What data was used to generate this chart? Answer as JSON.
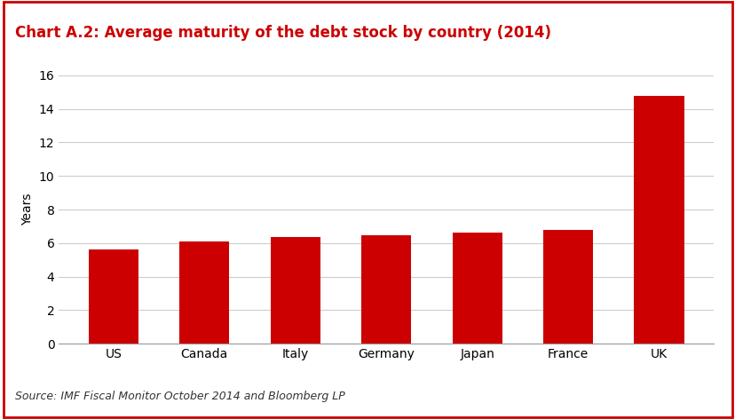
{
  "title": "Chart A.2: Average maturity of the debt stock by country (2014)",
  "title_color": "#cc0000",
  "title_fontsize": 12,
  "categories": [
    "US",
    "Canada",
    "Italy",
    "Germany",
    "Japan",
    "France",
    "UK"
  ],
  "values": [
    5.6,
    6.1,
    6.35,
    6.45,
    6.6,
    6.8,
    14.8
  ],
  "bar_color": "#cc0000",
  "ylabel": "Years",
  "ylim": [
    0,
    16
  ],
  "yticks": [
    0,
    2,
    4,
    6,
    8,
    10,
    12,
    14,
    16
  ],
  "source_text": "Source: IMF Fiscal Monitor October 2014 and Bloomberg LP",
  "background_color": "#ffffff",
  "grid_color": "#cccccc",
  "border_color": "#cc0000",
  "tick_fontsize": 10,
  "ylabel_fontsize": 10
}
